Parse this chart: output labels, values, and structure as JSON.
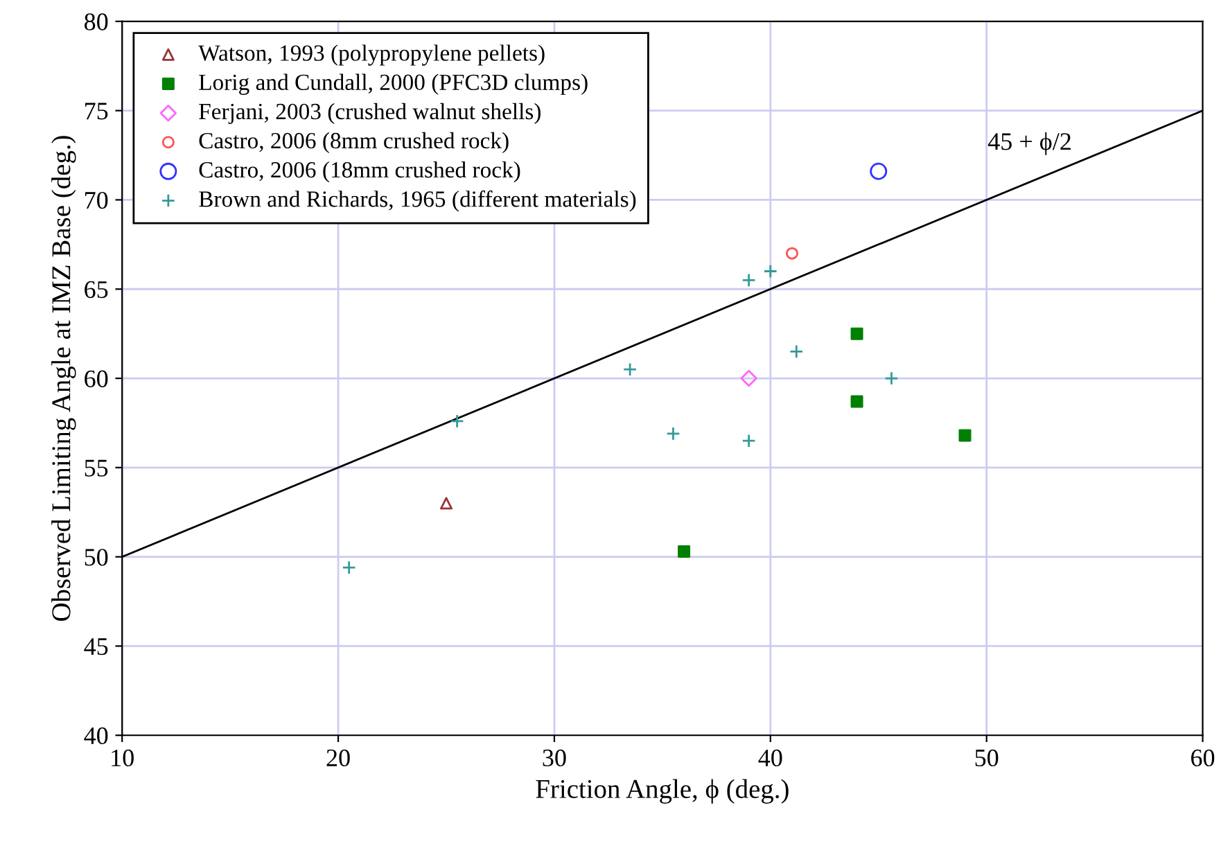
{
  "chart_data": {
    "type": "scatter",
    "xlabel": "Friction Angle, ϕ (deg.)",
    "ylabel": "Observed Limiting Angle at IMZ Base (deg.)",
    "xlim": [
      10,
      60
    ],
    "ylim": [
      40,
      80
    ],
    "xticks": [
      10,
      20,
      30,
      40,
      50,
      60
    ],
    "yticks": [
      40,
      45,
      50,
      55,
      60,
      65,
      70,
      75,
      80
    ],
    "grid": true,
    "legend": "top left",
    "series": [
      {
        "name": "Watson, 1993 (polypropylene pellets)",
        "color": "#993333",
        "marker": "triangle",
        "x": [
          25
        ],
        "values": [
          53.0
        ]
      },
      {
        "name": "Lorig and Cundall, 2000 (PFC3D clumps)",
        "color": "#008000",
        "marker": "square",
        "x": [
          36,
          44,
          44,
          49
        ],
        "values": [
          50.3,
          62.5,
          58.7,
          56.8
        ]
      },
      {
        "name": "Ferjani, 2003 (crushed walnut shells)",
        "color": "#ff66ff",
        "marker": "diamond",
        "x": [
          39
        ],
        "values": [
          60.0
        ]
      },
      {
        "name": "Castro, 2006 (8mm crushed rock)",
        "color": "#ff5050",
        "marker": "circle",
        "x": [
          41
        ],
        "values": [
          67.0
        ]
      },
      {
        "name": "Castro, 2006 (18mm crushed rock)",
        "color": "#3333ff",
        "marker": "circle",
        "x": [
          45
        ],
        "values": [
          71.6
        ]
      },
      {
        "name": "Brown and Richards, 1965 (different materials)",
        "color": "#339999",
        "marker": "cross",
        "x": [
          20.5,
          25.5,
          33.5,
          35.5,
          39,
          39,
          40,
          41.2,
          45.6
        ],
        "values": [
          49.4,
          57.6,
          60.5,
          56.9,
          65.5,
          56.5,
          66.0,
          61.5,
          60.0
        ]
      },
      {
        "name": "45 + ϕ/2",
        "type": "line",
        "color": "#000000",
        "marker": "none",
        "line_style": "solid",
        "x": [
          10,
          60
        ],
        "values": [
          50,
          75
        ]
      }
    ]
  }
}
